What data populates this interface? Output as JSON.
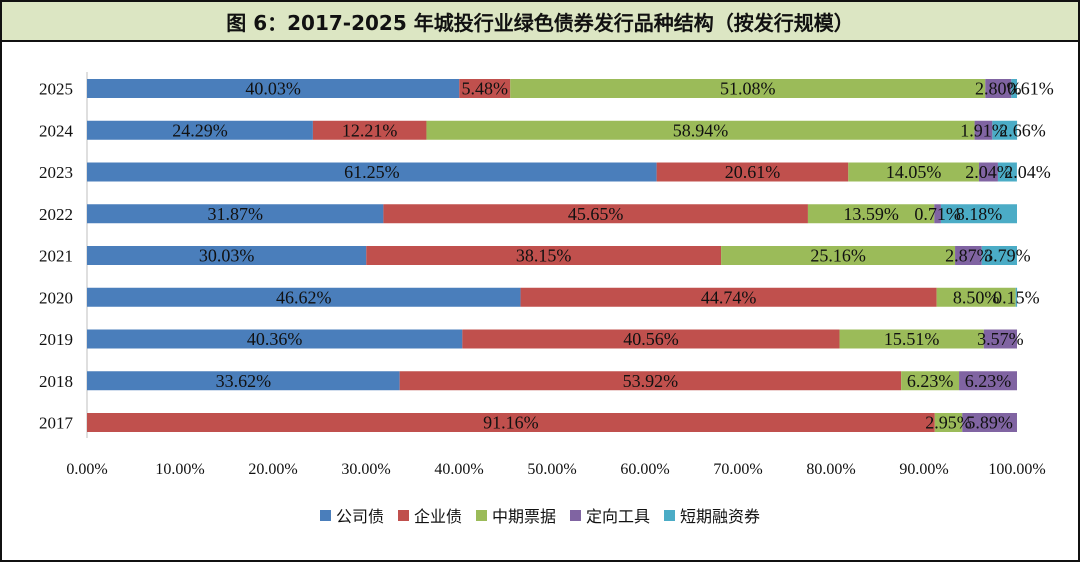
{
  "figure": {
    "title": "图 6：2017-2025 年城投行业绿色债券发行品种结构（按发行规模）"
  },
  "colors": {
    "公司债": "#4a7ebb",
    "企业债": "#c0504d",
    "中期票据": "#9bbb59",
    "定向工具": "#8064a2",
    "短期融资券": "#4bacc6"
  },
  "chart_data": {
    "type": "bar",
    "orientation": "horizontal",
    "stacked": true,
    "title": "图 6：2017-2025 年城投行业绿色债券发行品种结构（按发行规模）",
    "xlabel": "",
    "ylabel": "",
    "xlim": [
      0,
      100
    ],
    "x_ticks": [
      "0.00%",
      "10.00%",
      "20.00%",
      "30.00%",
      "40.00%",
      "50.00%",
      "60.00%",
      "70.00%",
      "80.00%",
      "90.00%",
      "100.00%"
    ],
    "categories": [
      "2025",
      "2024",
      "2023",
      "2022",
      "2021",
      "2020",
      "2019",
      "2018",
      "2017"
    ],
    "legend_position": "bottom",
    "grid": false,
    "series": [
      {
        "name": "公司债",
        "values": [
          40.03,
          24.29,
          61.25,
          31.87,
          30.03,
          46.62,
          40.36,
          33.62,
          0
        ],
        "labels": [
          "40.03%",
          "24.29%",
          "61.25%",
          "31.87%",
          "30.03%",
          "46.62%",
          "40.36%",
          "33.62%",
          ""
        ]
      },
      {
        "name": "企业债",
        "values": [
          5.48,
          12.21,
          20.61,
          45.65,
          38.15,
          44.74,
          40.56,
          53.92,
          91.16
        ],
        "labels": [
          "5.48%",
          "12.21%",
          "20.61%",
          "45.65%",
          "38.15%",
          "44.74%",
          "40.56%",
          "53.92%",
          "91.16%"
        ]
      },
      {
        "name": "中期票据",
        "values": [
          51.08,
          58.94,
          14.05,
          13.59,
          25.16,
          8.5,
          15.51,
          6.23,
          2.95
        ],
        "labels": [
          "51.08%",
          "58.94%",
          "14.05%",
          "13.59%",
          "25.16%",
          "8.50%",
          "15.51%",
          "6.23%",
          "2.95%"
        ]
      },
      {
        "name": "定向工具",
        "values": [
          2.8,
          1.91,
          2.04,
          0.71,
          2.87,
          0,
          3.57,
          6.23,
          5.89
        ],
        "labels": [
          "2.80%",
          "1.91%",
          "2.04%",
          "0.71%",
          "2.87%",
          "",
          "3.57%",
          "6.23%",
          "5.89%"
        ]
      },
      {
        "name": "短期融资券",
        "values": [
          0.61,
          2.66,
          2.04,
          8.18,
          3.79,
          0.15,
          0,
          0,
          0
        ],
        "labels": [
          "0.61%",
          "2.66%",
          "2.04%",
          "8.18%",
          "3.79%",
          "0.15%",
          "",
          "",
          ""
        ]
      }
    ]
  }
}
